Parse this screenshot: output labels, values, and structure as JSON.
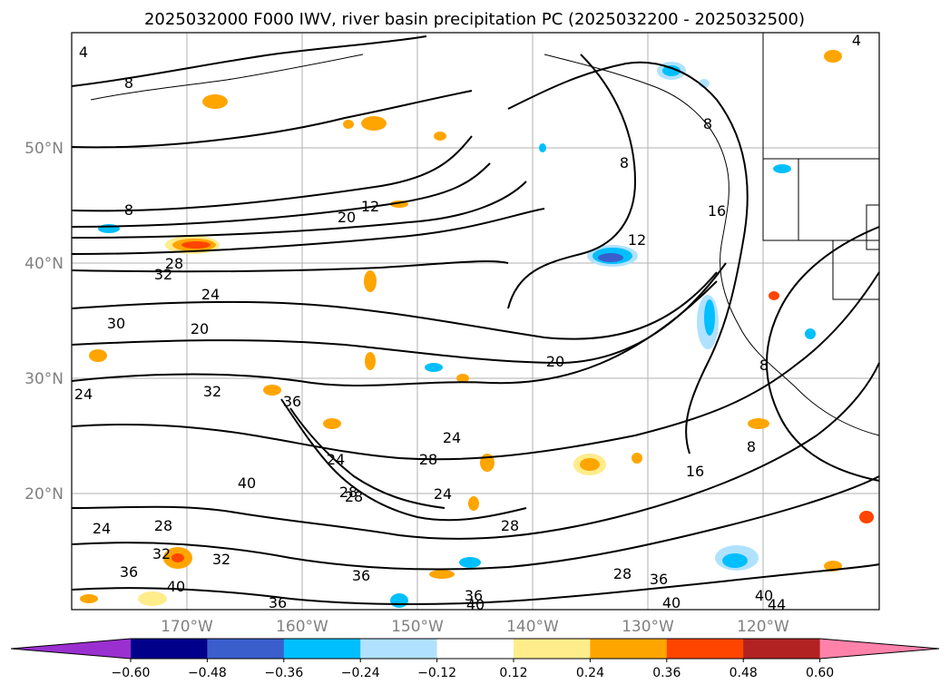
{
  "title": "2025032000 F000 IWV, river basin precipitation PC (2025032200 - 2025032500)",
  "map": {
    "lat_labels": [
      "50°N",
      "40°N",
      "30°N",
      "20°N"
    ],
    "lon_labels": [
      "170°W",
      "160°W",
      "150°W",
      "140°W",
      "130°W",
      "120°W"
    ],
    "gridlines": true,
    "projection": "lat-lon",
    "extent_note": "North Pacific and western North America"
  },
  "contour_labels": [
    "4",
    "8",
    "4",
    "8",
    "8",
    "12",
    "20",
    "28",
    "32",
    "24",
    "20",
    "8",
    "16",
    "12",
    "24",
    "30",
    "20",
    "32",
    "36",
    "24",
    "28",
    "24",
    "28",
    "24",
    "28",
    "16",
    "8",
    "24",
    "28",
    "32",
    "36",
    "40",
    "32",
    "36",
    "28",
    "36",
    "40",
    "36",
    "40",
    "40",
    "36",
    "40",
    "44",
    "8",
    "28"
  ],
  "colorbar": {
    "ticks": [
      "−0.60",
      "−0.48",
      "−0.36",
      "−0.24",
      "−0.12",
      "0.12",
      "0.24",
      "0.36",
      "0.48",
      "0.60"
    ],
    "colors": [
      "#9b30d0",
      "#00008b",
      "#3a5fcd",
      "#00bfff",
      "#b0e2ff",
      "#ffffff",
      "#ffec8b",
      "#ffa500",
      "#ff4500",
      "#b22222",
      "#ff82ab"
    ],
    "extend": "both"
  }
}
